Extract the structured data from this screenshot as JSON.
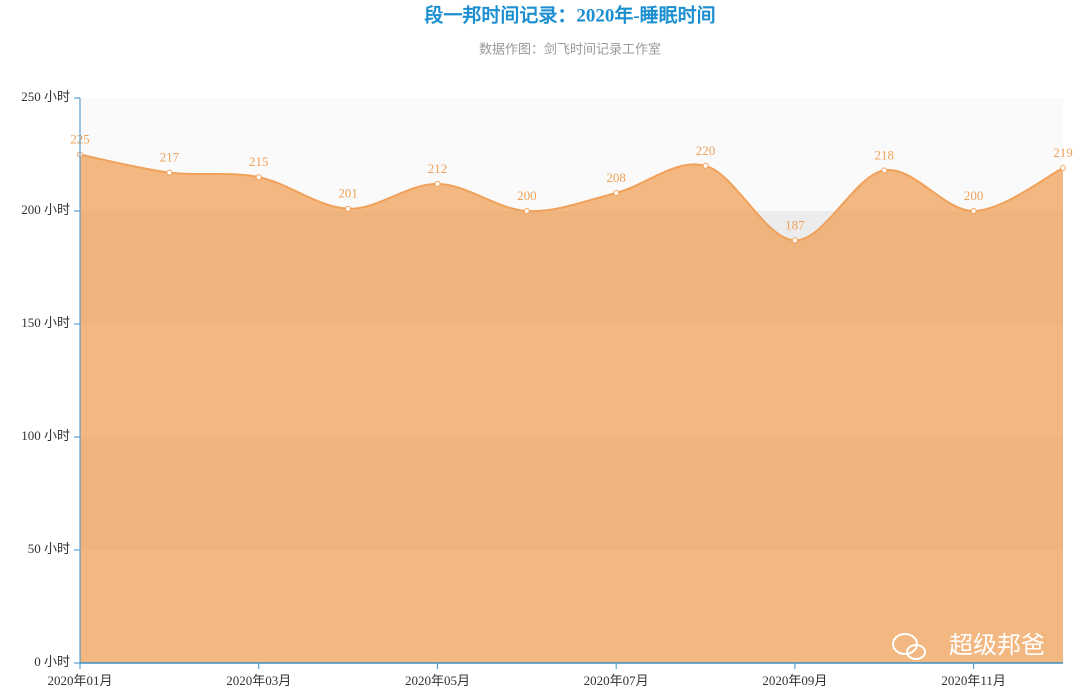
{
  "chart_data": {
    "type": "area",
    "title": "段一邦时间记录：2020年-睡眠时间",
    "subtitle": "数据作图：剑飞时间记录工作室",
    "watermark": "超级邦爸",
    "categories": [
      "2020年01月",
      null,
      "2020年03月",
      null,
      "2020年05月",
      null,
      "2020年07月",
      null,
      "2020年09月",
      null,
      "2020年11月",
      null
    ],
    "series": [
      {
        "name": "睡眠时间",
        "color": "#f0a15a",
        "values": [
          225,
          217,
          215,
          201,
          212,
          200,
          208,
          220,
          187,
          218,
          200,
          219
        ]
      }
    ],
    "ylim": [
      0,
      250
    ],
    "yticks": [
      {
        "value": 0,
        "label": "0 小时"
      },
      {
        "value": 50,
        "label": "50 小时"
      },
      {
        "value": 100,
        "label": "100 小时"
      },
      {
        "value": 150,
        "label": "150 小时"
      },
      {
        "value": 200,
        "label": "200 小时"
      },
      {
        "value": 250,
        "label": "250 小时"
      }
    ],
    "grid": true
  }
}
